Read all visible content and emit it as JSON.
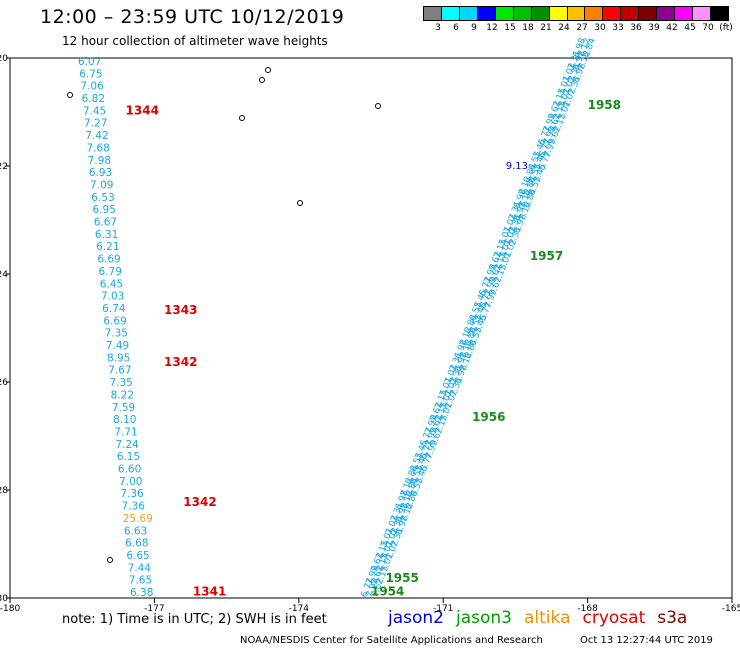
{
  "header": {
    "title": "12:00 – 23:59 UTC 10/12/2019",
    "subtitle": "12 hour collection of altimeter wave heights"
  },
  "color_legend": {
    "swatches": [
      "#7f7f7f",
      "#00ffff",
      "#00d7ff",
      "#0000ff",
      "#00e800",
      "#00c000",
      "#009000",
      "#ffff00",
      "#ffc000",
      "#ff7f00",
      "#ff0000",
      "#c00000",
      "#800000",
      "#900090",
      "#ff00ff",
      "#ff90ff",
      "#000000"
    ],
    "labels": [
      "3",
      "6",
      "9",
      "12",
      "15",
      "18",
      "21",
      "24",
      "27",
      "30",
      "33",
      "36",
      "39",
      "42",
      "45",
      "70",
      "(ft)"
    ]
  },
  "chart_data": {
    "type": "scatter",
    "xlim": [
      -180,
      -165
    ],
    "ylim": [
      -30,
      -20
    ],
    "x_ticks": [
      "-180",
      "-177",
      "-174",
      "-171",
      "-168",
      "-165"
    ],
    "x_tick_values": [
      -180,
      -177,
      -174,
      -171,
      -168,
      -165
    ],
    "y_ticks": [
      "-20",
      "-22",
      "-24",
      "-26",
      "-28",
      "-30"
    ],
    "y_tick_values": [
      -20,
      -22,
      -24,
      -26,
      -28,
      -30
    ],
    "left_track": {
      "satellite": "cryosat",
      "color": "#1aa8e0",
      "values": [
        "6.07",
        "6.75",
        "7.06",
        "6.82",
        "7.45",
        "7.27",
        "7.42",
        "7.68",
        "7.98",
        "6.93",
        "7.09",
        "6.53",
        "6.95",
        "6.67",
        "6.31",
        "6.21",
        "6.69",
        "6.79",
        "6.45",
        "7.03",
        "6.74",
        "6.69",
        "7.35",
        "7.49",
        "8.95",
        "7.67",
        "7.35",
        "8.22",
        "7.59",
        "8.10",
        "7.71",
        "7.24",
        "6.15",
        "6.60",
        "7.00",
        "7.36",
        "7.36",
        "25.69",
        "6.63",
        "6.68",
        "6.65",
        "7.44",
        "7.65",
        "6.38"
      ],
      "highlight_index": 37,
      "highlight_color": "#f0a020"
    },
    "time_labels": [
      {
        "text": "1344",
        "x": -177.6,
        "y": -20.97,
        "color": "#e00000"
      },
      {
        "text": "1343",
        "x": -176.8,
        "y": -24.67,
        "color": "#e00000"
      },
      {
        "text": "1342",
        "x": -176.8,
        "y": -25.63,
        "color": "#e00000"
      },
      {
        "text": "1342",
        "x": -176.4,
        "y": -28.22,
        "color": "#e00000"
      },
      {
        "text": "1341",
        "x": -176.2,
        "y": -29.88,
        "color": "#e00000"
      },
      {
        "text": "1958",
        "x": -168.0,
        "y": -20.87,
        "color": "#1a8a1a"
      },
      {
        "text": "1957",
        "x": -169.2,
        "y": -23.67,
        "color": "#1a8a1a"
      },
      {
        "text": "1956",
        "x": -170.4,
        "y": -26.65,
        "color": "#1a8a1a"
      },
      {
        "text": "1955",
        "x": -172.2,
        "y": -29.63,
        "color": "#1a8a1a"
      },
      {
        "text": "1954",
        "x": -172.5,
        "y": -29.88,
        "color": "#1a8a1a"
      }
    ],
    "diagonal_track": {
      "satellite": "jason3",
      "color": "#1aa8e0",
      "start": [
        -172.6,
        -30
      ],
      "end": [
        -168.2,
        -20
      ],
      "highlight": {
        "text": "9.13",
        "x": -169.7,
        "y": -21.98,
        "color": "#0000cc"
      },
      "sample_values": [
        "6.77",
        "7.99",
        "7.62",
        "7.15",
        "7.01",
        "7.02",
        "7.31",
        "6.98",
        "7.12",
        "6.84",
        "6.55",
        "7.45"
      ]
    }
  },
  "note": "note: 1) Time is in UTC; 2) SWH is in feet",
  "satellites": [
    {
      "name": "jason2",
      "color": "#0000dd"
    },
    {
      "name": "jason3",
      "color": "#00a000"
    },
    {
      "name": "altika",
      "color": "#f09000"
    },
    {
      "name": "cryosat",
      "color": "#e00000"
    },
    {
      "name": "s3a",
      "color": "#800000"
    }
  ],
  "footer": {
    "credit": "NOAA/NESDIS Center for Satellite Applications and Research",
    "timestamp": "Oct 13 12:27:44 UTC 2019"
  }
}
